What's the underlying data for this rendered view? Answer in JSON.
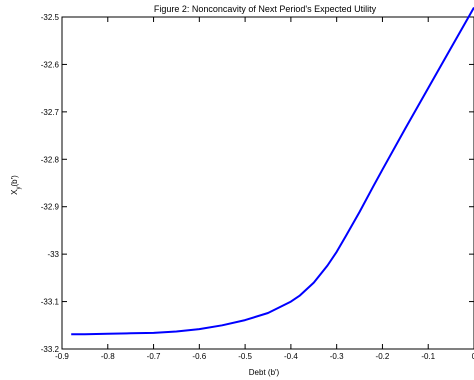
{
  "chart_data": {
    "type": "line",
    "title": "Figure 2: Nonconcavity of Next Period's Expected Utility",
    "xlabel": "Debt  (b')",
    "ylabel": {
      "base": "X",
      "sub": "y",
      "arg": "(b')"
    },
    "xlim": [
      -0.9,
      0
    ],
    "ylim": [
      -33.2,
      -32.5
    ],
    "xticks": [
      -0.9,
      -0.8,
      -0.7,
      -0.6,
      -0.5,
      -0.4,
      -0.3,
      -0.2,
      -0.1,
      0
    ],
    "xtick_labels": [
      "-0.9",
      "-0.8",
      "-0.7",
      "-0.6",
      "-0.5",
      "-0.4",
      "-0.3",
      "-0.2",
      "-0.1",
      "0"
    ],
    "yticks": [
      -32.5,
      -32.6,
      -32.7,
      -32.8,
      -32.9,
      -33,
      -33.1,
      -33.2
    ],
    "ytick_labels": [
      "-32.5",
      "-32.6",
      "-32.7",
      "-32.8",
      "-32.9",
      "-33",
      "-33.1",
      "-33.2"
    ],
    "grid": false,
    "series": [
      {
        "color": "#0000ff",
        "x": [
          -0.88,
          -0.85,
          -0.8,
          -0.75,
          -0.7,
          -0.65,
          -0.6,
          -0.55,
          -0.5,
          -0.45,
          -0.4,
          -0.38,
          -0.35,
          -0.32,
          -0.3,
          -0.28,
          -0.25,
          -0.22,
          -0.2,
          -0.15,
          -0.1,
          -0.05,
          0
        ],
        "y": [
          -33.169,
          -33.169,
          -33.168,
          -33.167,
          -33.166,
          -33.163,
          -33.158,
          -33.15,
          -33.139,
          -33.124,
          -33.1,
          -33.087,
          -33.06,
          -33.024,
          -32.995,
          -32.962,
          -32.911,
          -32.857,
          -32.822,
          -32.735,
          -32.65,
          -32.565,
          -32.48
        ]
      }
    ]
  }
}
